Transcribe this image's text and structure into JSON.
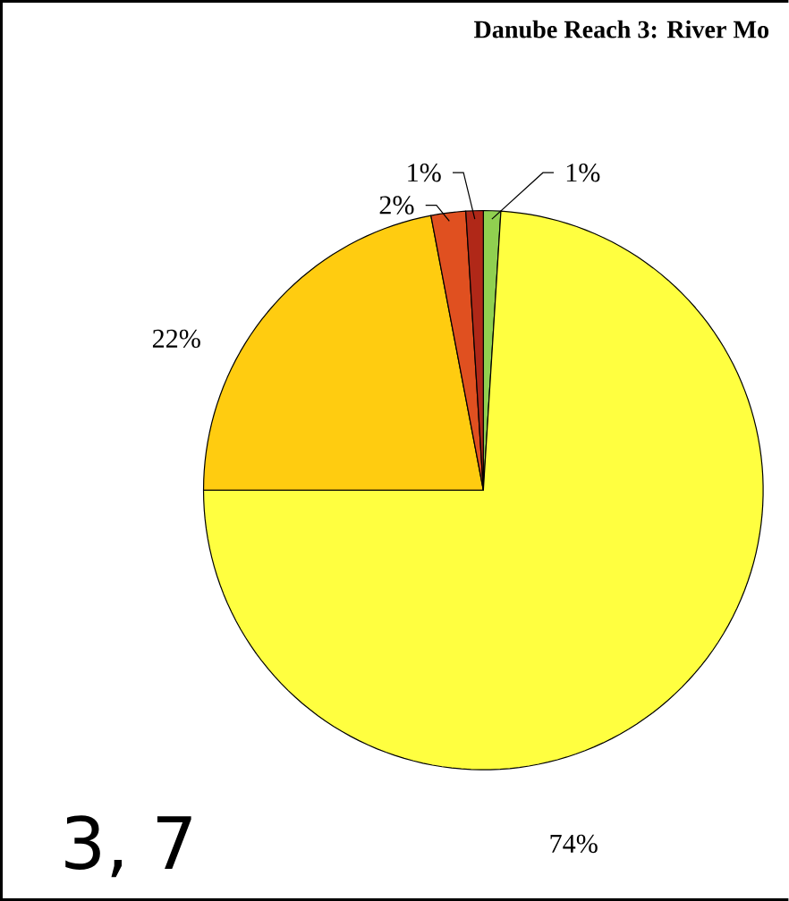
{
  "chart_data": {
    "type": "pie",
    "title": "Danube Reach 3: River Mo",
    "categories": [
      null,
      null,
      null,
      null,
      null
    ],
    "values": [
      1,
      74,
      22,
      2,
      1
    ],
    "colors": [
      "#90d050",
      "#ffff40",
      "#ffcc10",
      "#e05020",
      "#b02818"
    ],
    "value_labels": [
      "1%",
      "74%",
      "22%",
      "2%",
      "1%"
    ],
    "annotations": [
      "3, 7"
    ]
  }
}
